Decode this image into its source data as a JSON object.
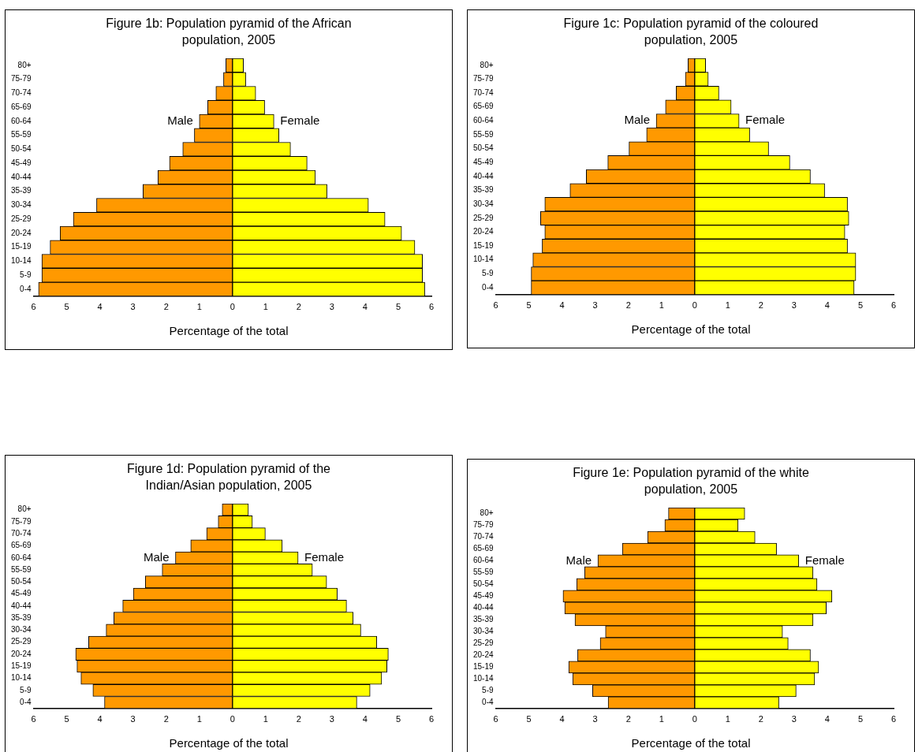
{
  "chart_data": [
    {
      "type": "bar",
      "orientation": "horizontal",
      "stacked": true,
      "title": "Figure 1b:   Population pyramid of the African population, 2005",
      "xlabel": "Percentage of the total",
      "categories": [
        "80+",
        "75-79",
        "70-74",
        "65-69",
        "60-64",
        "55-59",
        "50-54",
        "45-49",
        "40-44",
        "35-39",
        "30-34",
        "25-29",
        "20-24",
        "15-19",
        "10-14",
        "5-9",
        "0-4"
      ],
      "series": [
        {
          "name": "Male",
          "color": "#ff9900",
          "values": [
            -0.2,
            -0.27,
            -0.5,
            -0.75,
            -1.0,
            -1.15,
            -1.5,
            -1.9,
            -2.25,
            -2.7,
            -4.1,
            -4.8,
            -5.2,
            -5.5,
            -5.75,
            -5.75,
            -5.85
          ]
        },
        {
          "name": "Female",
          "color": "#ffff00",
          "values": [
            0.33,
            0.4,
            0.7,
            0.97,
            1.25,
            1.4,
            1.75,
            2.25,
            2.5,
            2.85,
            4.1,
            4.6,
            5.1,
            5.5,
            5.73,
            5.73,
            5.8
          ]
        }
      ],
      "xlim": [
        -6,
        6
      ],
      "xticks": [
        {
          "value": -6,
          "label": "6"
        },
        {
          "value": -5,
          "label": "5"
        },
        {
          "value": -4,
          "label": "4"
        },
        {
          "value": -3,
          "label": "3"
        },
        {
          "value": -2,
          "label": "2"
        },
        {
          "value": -1,
          "label": "1"
        },
        0,
        1,
        2,
        3,
        4,
        5,
        6
      ]
    },
    {
      "type": "bar",
      "orientation": "horizontal",
      "stacked": true,
      "title": "Figure 1c:   Population pyramid of the coloured population, 2005",
      "xlabel": "Percentage of the total",
      "categories": [
        "80+",
        "75-79",
        "70-74",
        "65-69",
        "60-64",
        "55-59",
        "50-54",
        "45-49",
        "40-44",
        "35-39",
        "30-34",
        "25-29",
        "20-24",
        "15-19",
        "10-14",
        "5-9",
        "0-4"
      ],
      "series": [
        {
          "name": "Male",
          "color": "#ff9900",
          "values": [
            -0.2,
            -0.28,
            -0.56,
            -0.88,
            -1.16,
            -1.45,
            -1.98,
            -2.62,
            -3.27,
            -3.76,
            -4.52,
            -4.65,
            -4.52,
            -4.6,
            -4.88,
            -4.93,
            -4.93
          ]
        },
        {
          "name": "Female",
          "color": "#ffff00",
          "values": [
            0.33,
            0.41,
            0.73,
            1.1,
            1.34,
            1.66,
            2.23,
            2.87,
            3.49,
            3.92,
            4.61,
            4.65,
            4.53,
            4.61,
            4.86,
            4.86,
            4.81
          ]
        }
      ],
      "xlim": [
        -6,
        6
      ],
      "xticks": [
        {
          "value": -6,
          "label": "6"
        },
        {
          "value": -5,
          "label": "5"
        },
        {
          "value": -4,
          "label": "4"
        },
        {
          "value": -3,
          "label": "3"
        },
        {
          "value": -2,
          "label": "2"
        },
        {
          "value": -1,
          "label": "1"
        },
        0,
        1,
        2,
        3,
        4,
        5,
        6
      ]
    },
    {
      "type": "bar",
      "orientation": "horizontal",
      "stacked": true,
      "title": "Figure 1d:   Population pyramid of the Indian/Asian population, 2005",
      "xlabel": "Percentage of the total",
      "categories": [
        "80+",
        "75-79",
        "70-74",
        "65-69",
        "60-64",
        "55-59",
        "50-54",
        "45-49",
        "40-44",
        "35-39",
        "30-34",
        "25-29",
        "20-24",
        "15-19",
        "10-14",
        "5-9",
        "0-4"
      ],
      "series": [
        {
          "name": "Male",
          "color": "#ff9900",
          "values": [
            -0.31,
            -0.43,
            -0.78,
            -1.26,
            -1.72,
            -2.12,
            -2.63,
            -2.99,
            -3.31,
            -3.58,
            -3.81,
            -4.34,
            -4.73,
            -4.69,
            -4.57,
            -4.21,
            -3.86
          ]
        },
        {
          "name": "Female",
          "color": "#ffff00",
          "values": [
            0.48,
            0.6,
            0.99,
            1.5,
            1.98,
            2.41,
            2.84,
            3.16,
            3.44,
            3.64,
            3.87,
            4.35,
            4.7,
            4.66,
            4.5,
            4.15,
            3.75
          ]
        }
      ],
      "xlim": [
        -6,
        6
      ],
      "xticks": [
        {
          "value": -6,
          "label": "6"
        },
        {
          "value": -5,
          "label": "5"
        },
        {
          "value": -4,
          "label": "4"
        },
        {
          "value": -3,
          "label": "3"
        },
        {
          "value": -2,
          "label": "2"
        },
        {
          "value": -1,
          "label": "1"
        },
        0,
        1,
        2,
        3,
        4,
        5,
        6
      ]
    },
    {
      "type": "bar",
      "orientation": "horizontal",
      "stacked": true,
      "title": "Figure 1e:   Population pyramid of the white population, 2005",
      "xlabel": "Percentage of the total",
      "categories": [
        "80+",
        "75-79",
        "70-74",
        "65-69",
        "60-64",
        "55-59",
        "50-54",
        "45-49",
        "40-44",
        "35-39",
        "30-34",
        "25-29",
        "20-24",
        "15-19",
        "10-14",
        "5-9",
        "0-4"
      ],
      "series": [
        {
          "name": "Male",
          "color": "#ff9900",
          "values": [
            -0.79,
            -0.9,
            -1.42,
            -2.18,
            -2.92,
            -3.32,
            -3.56,
            -3.97,
            -3.92,
            -3.61,
            -2.69,
            -2.85,
            -3.53,
            -3.8,
            -3.68,
            -3.08,
            -2.61
          ]
        },
        {
          "name": "Female",
          "color": "#ffff00",
          "values": [
            1.51,
            1.31,
            1.82,
            2.47,
            3.14,
            3.57,
            3.69,
            4.14,
            3.97,
            3.57,
            2.65,
            2.82,
            3.49,
            3.74,
            3.62,
            3.06,
            2.54
          ]
        }
      ],
      "xlim": [
        -6,
        6
      ],
      "xticks": [
        {
          "value": -6,
          "label": "6"
        },
        {
          "value": -5,
          "label": "5"
        },
        {
          "value": -4,
          "label": "4"
        },
        {
          "value": -3,
          "label": "3"
        },
        {
          "value": -2,
          "label": "2"
        },
        {
          "value": -1,
          "label": "1"
        },
        0,
        1,
        2,
        3,
        4,
        5,
        6
      ]
    }
  ]
}
